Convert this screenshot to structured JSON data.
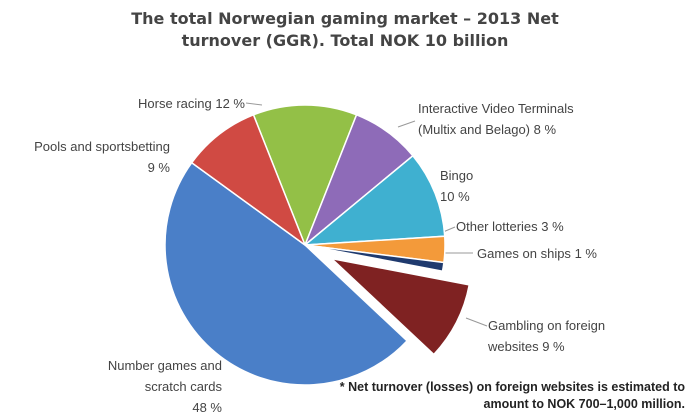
{
  "chart_data": {
    "type": "pie",
    "title": "The total Norwegian gaming market – 2013 Net turnover (GGR). Total NOK 10 billion",
    "categories": [
      "Horse racing",
      "Interactive Video Terminals (Multix and Belago)",
      "Bingo",
      "Other lotteries",
      "Games on ships",
      "Gambling on foreign websites",
      "Number games and scratch cards",
      "Pools and sportsbetting"
    ],
    "values": [
      12,
      8,
      10,
      3,
      1,
      9,
      48,
      9
    ],
    "value_labels": [
      "12 %",
      "8 %",
      "10 %",
      "3 %",
      "1 %",
      "9 %",
      "48 %",
      "9 %"
    ],
    "colors": [
      "#93c047",
      "#8e6bb8",
      "#3fb0d0",
      "#f39a3a",
      "#1f3a6e",
      "#7f2222",
      "#4a7fc8",
      "#d04a43"
    ],
    "exploded": [
      "Gambling on foreign websites"
    ],
    "annotation": "* Net turnover (losses) on foreign websites is estimated to amount to NOK 700–1,000 million."
  }
}
